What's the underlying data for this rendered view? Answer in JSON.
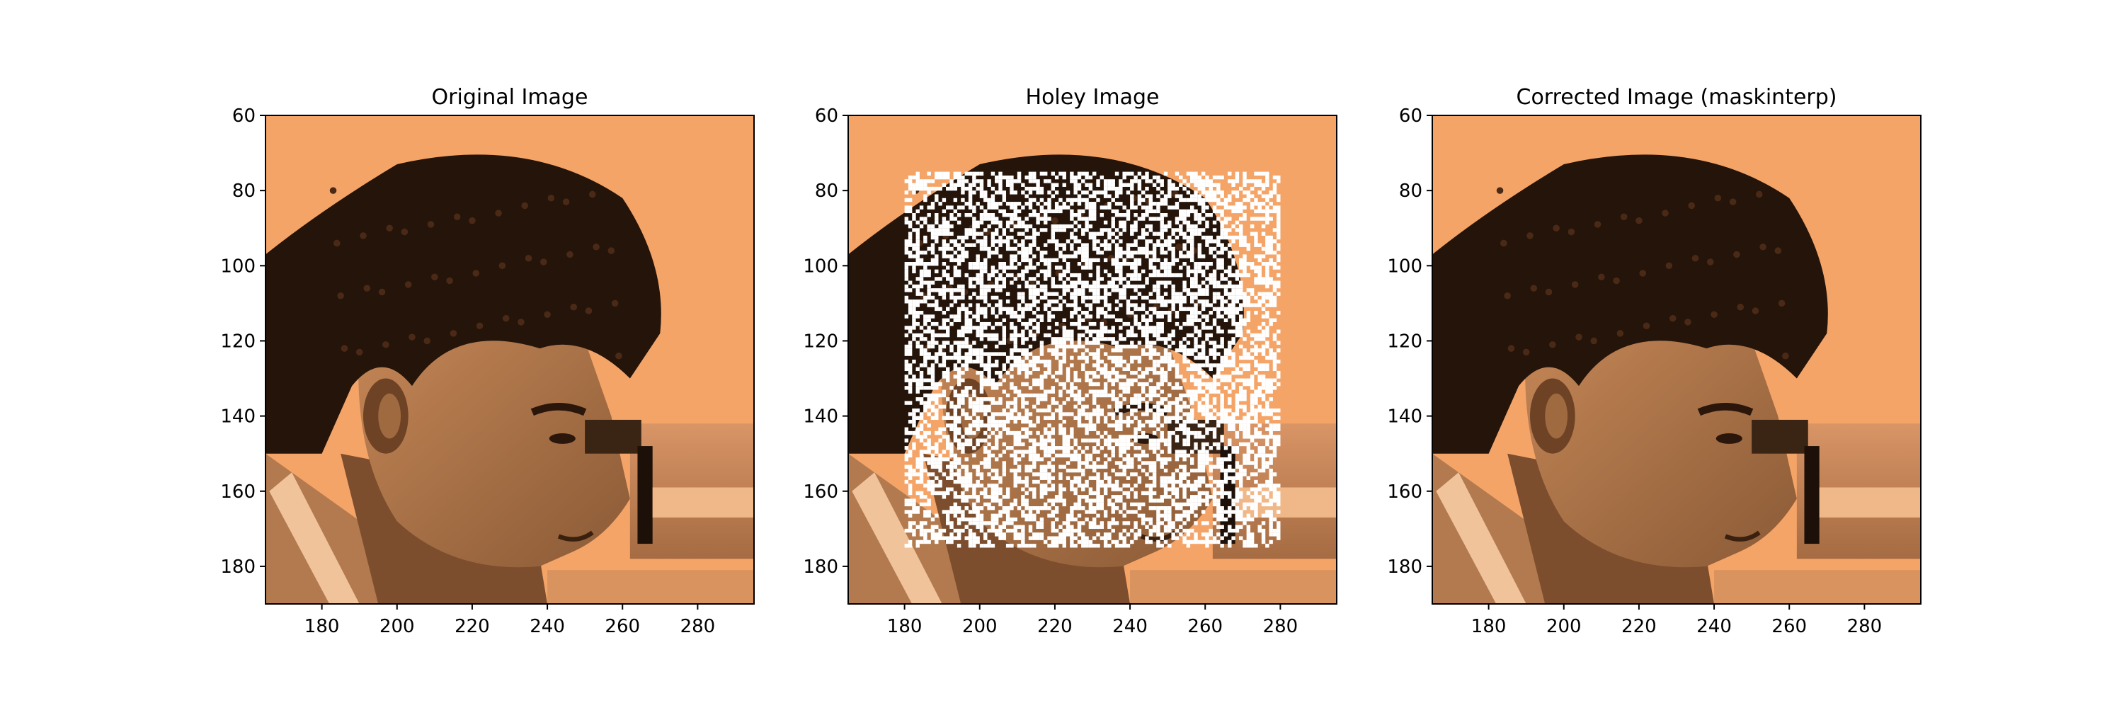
{
  "colors": {
    "copper_dark": "#1a0f08",
    "copper_light": "#f5a468",
    "hole": "#ffffff",
    "axis": "#000000"
  },
  "chart_data": [
    {
      "type": "image",
      "title": "Original Image",
      "xlim": [
        165,
        295
      ],
      "ylim": [
        190,
        60
      ],
      "xticks": [
        180,
        200,
        220,
        240,
        260,
        280
      ],
      "yticks": [
        60,
        80,
        100,
        120,
        140,
        160,
        180
      ],
      "colormap": "copper",
      "holes": false
    },
    {
      "type": "image",
      "title": "Holey Image",
      "xlim": [
        165,
        295
      ],
      "ylim": [
        190,
        60
      ],
      "xticks": [
        180,
        200,
        220,
        240,
        260,
        280
      ],
      "yticks": [
        60,
        80,
        100,
        120,
        140,
        160,
        180
      ],
      "colormap": "copper",
      "holes": true,
      "hole_region": {
        "x": [
          180,
          280
        ],
        "y": [
          75,
          175
        ]
      }
    },
    {
      "type": "image",
      "title": "Corrected Image (maskinterp)",
      "xlim": [
        165,
        295
      ],
      "ylim": [
        190,
        60
      ],
      "xticks": [
        180,
        200,
        220,
        240,
        260,
        280
      ],
      "yticks": [
        60,
        80,
        100,
        120,
        140,
        160,
        180
      ],
      "colormap": "copper",
      "holes": false
    }
  ]
}
